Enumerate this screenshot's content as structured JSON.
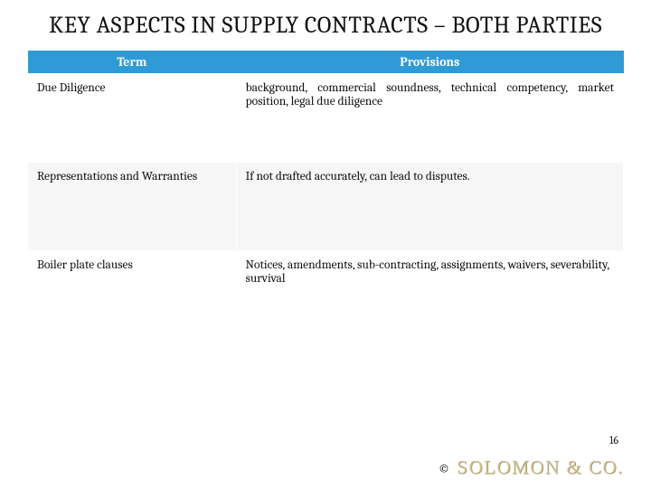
{
  "title": "KEY ASPECTS IN SUPPLY CONTRACTS – BOTH PARTIES",
  "table": {
    "header_bg": "#2e9bd6",
    "columns": [
      "Term",
      "Provisions"
    ],
    "col_widths": [
      "35%",
      "65%"
    ],
    "rows": [
      {
        "term": "Due Diligence",
        "provisions": "background, commercial soundness, technical competency, market position, legal due diligence",
        "justify": true
      },
      {
        "term": "Representations and Warranties",
        "provisions": "If not drafted accurately, can lead to disputes.",
        "justify": false
      },
      {
        "term": "Boiler plate clauses",
        "provisions": "Notices, amendments, sub-contracting, assignments, waivers, severability, survival",
        "justify": false
      }
    ],
    "row_bg_even": "#ffffff",
    "row_bg_odd": "#f6f6f6"
  },
  "page_number": "16",
  "footer": {
    "copyright_symbol": "©",
    "brand": "SOLOMON & CO."
  },
  "colors": {
    "brand_fill": "#cdbf94",
    "brand_shadow": "#8a7a3f"
  }
}
